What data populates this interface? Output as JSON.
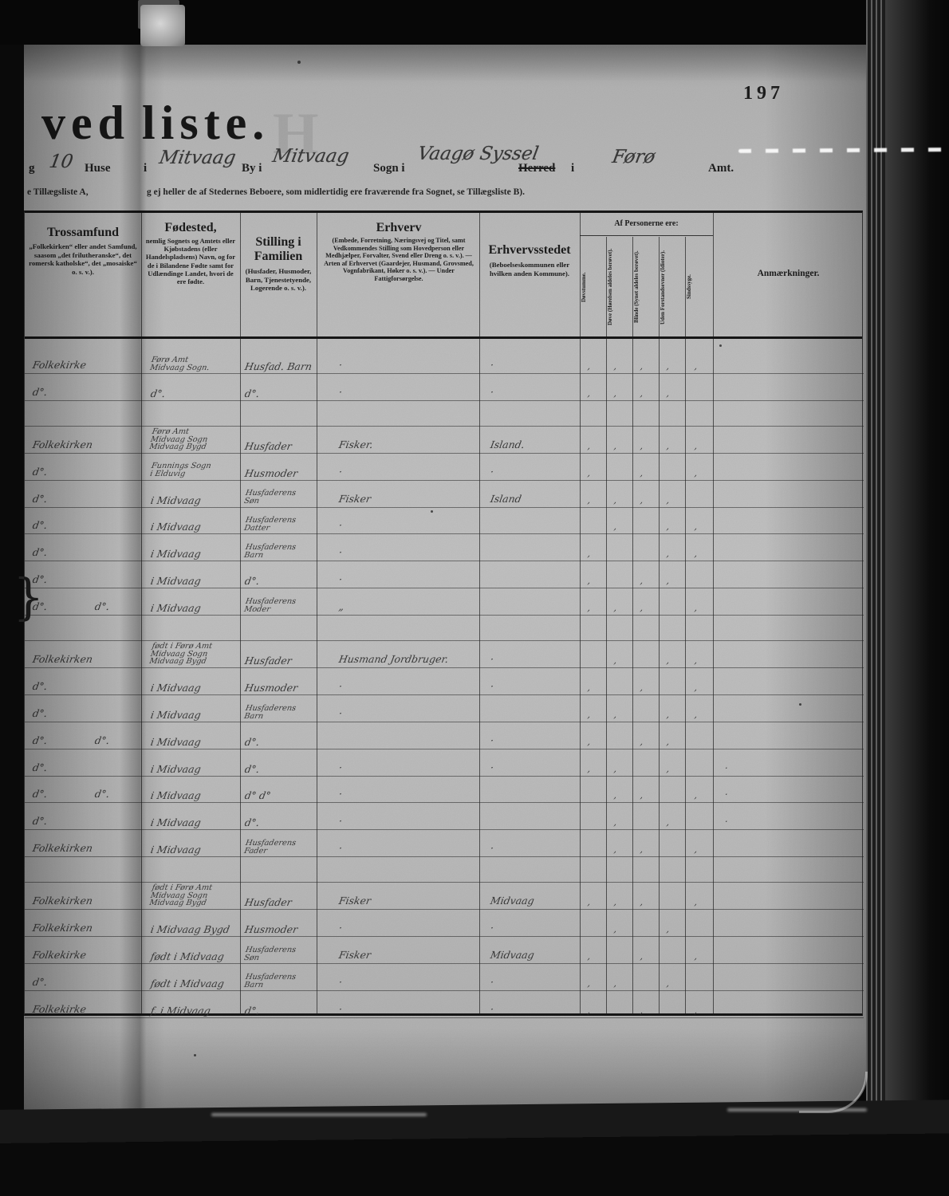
{
  "page": {
    "number": "197"
  },
  "title": {
    "left": "ved",
    "right": "liste.",
    "ghost_letter": "H"
  },
  "form_line": {
    "frag_left": "g",
    "houses_value": "10",
    "houses_label": "Huse",
    "prep1": "i",
    "by_value": "Mitvaag",
    "by_label": "By i",
    "sogn_value": "Mitvaag",
    "sogn_label": "Sogn i",
    "syssel_value": "Vaagø Syssel",
    "herred_struck": "Herred",
    "prep2": "i",
    "amt_value": "Førø",
    "amt_label": "Amt."
  },
  "note_line": {
    "left_fragment": "e Tillægsliste A,",
    "text": "g ej heller de af Stedernes Beboere, som midlertidig ere fraværende fra Sognet, se Tillægsliste B)."
  },
  "table": {
    "headers": {
      "trossamfund_title": "Trossamfund",
      "trossamfund_body": "„Folkekirken“ eller andet Samfund, saasom „det frilutheranske“, det romersk katholske“, det „mosaiske“ o. s. v.).",
      "fodested_title": "Fødested,",
      "fodested_body": "nemlig Sognets og Amtets eller Kjøbstadens (eller Handelspladsens) Navn, og for de i Bilandene Fødte samt for Udlændinge Landet, hvori de ere fødte.",
      "stilling_title": "Stilling i Familien",
      "stilling_body": "(Husfader, Husmoder, Barn, Tjenestetyende, Logerende o. s. v.).",
      "erhverv_title": "Erhverv",
      "erhverv_body": "(Embede, Forretning, Næringsvej og Titel, samt Vedkommendes Stilling som Hovedperson eller Medhjælper, Forvalter, Svend eller Dreng o. s. v.). — Arten af Erhvervet (Gaardejer, Husmand, Grovsmed, Vognfabrikant, Høker o. s. v.). — Under Fattigforsørgelse.",
      "erhvervsstedet_title": "Erhvervsstedet",
      "erhvervsstedet_body": "(Beboelseskommunen eller hvilken anden Kommune).",
      "af_personerne": "Af Personerne ere:",
      "narrow": [
        "Døvstumme.",
        "Døve (Hørelsen aldeles berøvet).",
        "Blinde (Synet aldeles berøvet).",
        "Uden Forstandsevner (Idioter).",
        "Sindssyge."
      ],
      "anmaerkninger": "Anmærkninger."
    },
    "rows": [
      {
        "type": "entry",
        "tros": "Folkekirke",
        "fod": [
          "Førø Amt",
          "Midvaag Sogn."
        ],
        "stil": [
          "Husfad. Barn"
        ],
        "erhverv": "·",
        "sted": "·",
        "ticks": [
          1,
          1,
          1,
          1,
          1
        ]
      },
      {
        "type": "entry",
        "tros": "d°.",
        "fod": [
          "d°."
        ],
        "stil": [
          "d°."
        ],
        "erhverv": "·",
        "sted": "·",
        "ticks": [
          1,
          1,
          1,
          1,
          0
        ]
      },
      {
        "type": "spacer"
      },
      {
        "type": "entry",
        "tros": "Folkekirken",
        "fod": [
          "Førø Amt",
          "Midvaag Sogn",
          "Midvaag Bygd"
        ],
        "stil": [
          "Husfader"
        ],
        "erhverv": "Fisker.",
        "sted": "Island.",
        "ticks": [
          1,
          1,
          1,
          1,
          1
        ]
      },
      {
        "type": "entry",
        "tros": "d°.",
        "fod": [
          "Funnings Sogn",
          "i Elduvig"
        ],
        "stil": [
          "Husmoder"
        ],
        "erhverv": "·",
        "sted": "·",
        "ticks": [
          1,
          0,
          1,
          0,
          1
        ]
      },
      {
        "type": "entry",
        "tros": "d°.",
        "fod": [
          "i Midvaag"
        ],
        "stil": [
          "Husfaderens",
          "Søn"
        ],
        "erhverv": "Fisker",
        "sted": "Island",
        "ticks": [
          1,
          1,
          1,
          1,
          0
        ]
      },
      {
        "type": "entry",
        "tros": "d°.",
        "fod": [
          "i Midvaag"
        ],
        "stil": [
          "Husfaderens",
          "Datter"
        ],
        "erhverv": "·",
        "sted": "",
        "ticks": [
          0,
          1,
          0,
          1,
          1
        ]
      },
      {
        "type": "entry",
        "tros": "d°.",
        "fod": [
          "i Midvaag"
        ],
        "stil": [
          "Husfaderens",
          "Barn"
        ],
        "erhverv": "·",
        "sted": "",
        "ticks": [
          1,
          0,
          0,
          1,
          1
        ]
      },
      {
        "type": "entry",
        "tros": "d°.",
        "fod": [
          "i Midvaag"
        ],
        "stil": [
          "d°."
        ],
        "erhverv": "·",
        "sted": "",
        "ticks": [
          1,
          0,
          1,
          1,
          0
        ]
      },
      {
        "type": "entry",
        "tros": "d°.",
        "tros2": "d°.",
        "fod": [
          "i Midvaag"
        ],
        "stil": [
          "Husfaderens",
          "Moder"
        ],
        "erhverv": "„",
        "sted": "",
        "ticks": [
          1,
          1,
          1,
          0,
          1
        ]
      },
      {
        "type": "spacer"
      },
      {
        "type": "entry",
        "tros": "Folkekirken",
        "fod": [
          "født i Førø Amt",
          "Midvaag Sogn",
          "Midvaag Bygd"
        ],
        "stil": [
          "Husfader"
        ],
        "erhverv": "Husmand Jordbruger.",
        "sted": "·",
        "ticks": [
          0,
          1,
          0,
          1,
          1
        ]
      },
      {
        "type": "entry",
        "tros": "d°.",
        "fod": [
          "i Midvaag"
        ],
        "stil": [
          "Husmoder"
        ],
        "erhverv": "·",
        "sted": "·",
        "ticks": [
          1,
          0,
          1,
          0,
          1
        ]
      },
      {
        "type": "entry",
        "tros": "d°.",
        "fod": [
          "i Midvaag"
        ],
        "stil": [
          "Husfaderens",
          "Barn"
        ],
        "erhverv": "·",
        "sted": "",
        "ticks": [
          1,
          1,
          0,
          1,
          1
        ]
      },
      {
        "type": "entry",
        "tros": "d°.",
        "tros2": "d°.",
        "fod": [
          "i Midvaag"
        ],
        "stil": [
          "d°."
        ],
        "erhverv": "",
        "sted": "·",
        "ticks": [
          1,
          0,
          1,
          1,
          0
        ]
      },
      {
        "type": "entry",
        "tros": "d°.",
        "fod": [
          "i Midvaag"
        ],
        "stil": [
          "d°."
        ],
        "erhverv": "·",
        "sted": "·",
        "anm": "·",
        "ticks": [
          1,
          1,
          0,
          1,
          0
        ]
      },
      {
        "type": "entry",
        "tros": "d°.",
        "tros2": "d°.",
        "fod": [
          "i Midvaag"
        ],
        "stil": [
          "d° d°"
        ],
        "erhverv": "·",
        "sted": "",
        "anm": "·",
        "ticks": [
          0,
          1,
          1,
          0,
          1
        ]
      },
      {
        "type": "entry",
        "tros": "d°.",
        "fod": [
          "i Midvaag"
        ],
        "stil": [
          "d°."
        ],
        "erhverv": "·",
        "sted": "",
        "anm": "·",
        "ticks": [
          0,
          1,
          0,
          1,
          0
        ]
      },
      {
        "type": "entry",
        "tros": "Folkekirken",
        "fod": [
          "i Midvaag"
        ],
        "stil": [
          "Husfaderens",
          "Fader"
        ],
        "erhverv": "·",
        "sted": "·",
        "ticks": [
          0,
          1,
          1,
          0,
          1
        ]
      },
      {
        "type": "spacer"
      },
      {
        "type": "entry",
        "tros": "Folkekirken",
        "fod": [
          "født i Førø Amt",
          "Midvaag Sogn",
          "Midvaag Bygd"
        ],
        "stil": [
          "Husfader"
        ],
        "erhverv": "Fisker",
        "sted": "Midvaag",
        "ticks": [
          1,
          1,
          1,
          0,
          1
        ]
      },
      {
        "type": "entry",
        "tros": "Folkekirken",
        "fod": [
          "i Midvaag Bygd"
        ],
        "stil": [
          "Husmoder"
        ],
        "erhverv": "·",
        "sted": "·",
        "ticks": [
          0,
          1,
          0,
          1,
          0
        ]
      },
      {
        "type": "entry",
        "tros": "Folkekirke",
        "fod": [
          "født i Midvaag"
        ],
        "stil": [
          "Husfaderens",
          "Søn"
        ],
        "erhverv": "Fisker",
        "sted": "Midvaag",
        "ticks": [
          1,
          0,
          1,
          0,
          1
        ]
      },
      {
        "type": "entry",
        "tros": "d°.",
        "fod": [
          "født i Midvaag"
        ],
        "stil": [
          "Husfaderens",
          "Barn"
        ],
        "erhverv": "·",
        "sted": "·",
        "ticks": [
          1,
          1,
          0,
          1,
          0
        ]
      },
      {
        "type": "entry",
        "tros": "Folkekirke",
        "fod": [
          "f. i Midvaag"
        ],
        "stil": [
          "d°."
        ],
        "erhverv": "·",
        "sted": "·",
        "ticks": [
          1,
          0,
          1,
          0,
          1
        ]
      }
    ]
  }
}
